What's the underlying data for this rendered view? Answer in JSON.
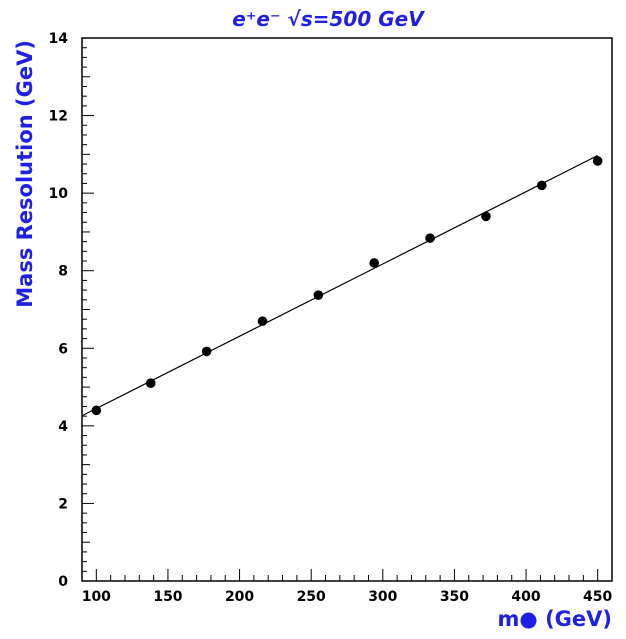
{
  "colors": {
    "title": "#1f1fe6",
    "axis_title": "#1f1fe6",
    "axes": "#000000",
    "points": "#000000",
    "fit_line": "#000000",
    "background": "#ffffff"
  },
  "chart_data": {
    "type": "scatter",
    "title": "e⁺e⁻ √s=500 GeV",
    "xlabel": "m● (GeV)",
    "ylabel": "Mass Resolution (GeV)",
    "xlim": [
      90,
      460
    ],
    "ylim": [
      0,
      14
    ],
    "x_ticks": [
      100,
      150,
      200,
      250,
      300,
      350,
      400,
      450
    ],
    "y_ticks": [
      0,
      2,
      4,
      6,
      8,
      10,
      12,
      14
    ],
    "grid": false,
    "series": [
      {
        "x": [
          100,
          138,
          177,
          216,
          255,
          294,
          333,
          372,
          411,
          450
        ],
        "y": [
          4.4,
          5.1,
          5.92,
          6.7,
          7.37,
          8.2,
          8.84,
          9.4,
          10.2,
          10.83
        ]
      }
    ],
    "fit_line": {
      "x": [
        90,
        450
      ],
      "y": [
        4.26,
        10.97
      ]
    }
  }
}
